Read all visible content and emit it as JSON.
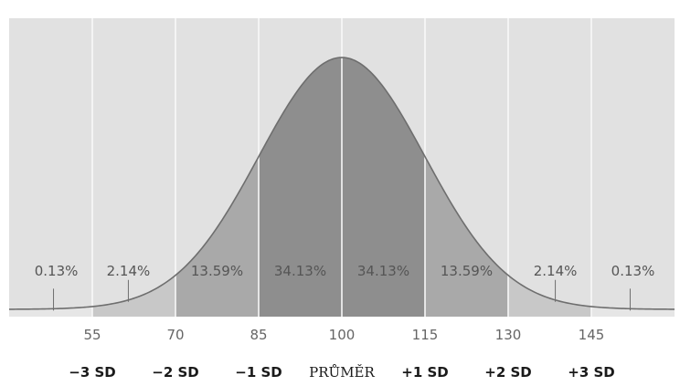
{
  "chart_data": {
    "type": "area",
    "title": "",
    "xlabel": "",
    "ylabel": "",
    "mean": 100,
    "sd": 15,
    "xlim": [
      40,
      160
    ],
    "grid": true,
    "x_ticks": [
      "55",
      "70",
      "85",
      "100",
      "115",
      "130",
      "145"
    ],
    "x_tick_values": [
      55,
      70,
      85,
      100,
      115,
      130,
      145
    ],
    "sd_labels": [
      "−3 SD",
      "−2 SD",
      "−1 SD",
      "PRŮMĚR",
      "+1 SD",
      "+2 SD",
      "+3 SD"
    ],
    "sd_label_values": [
      55,
      70,
      85,
      100,
      115,
      130,
      145
    ],
    "regions": [
      {
        "label": "0.13%",
        "from": 40,
        "to": 55,
        "value": 0.13,
        "label_x": 48.5,
        "color": "#e6e6e6"
      },
      {
        "label": "2.14%",
        "from": 55,
        "to": 70,
        "value": 2.14,
        "label_x": 61.5,
        "color": "#c8c8c8"
      },
      {
        "label": "13.59%",
        "from": 70,
        "to": 85,
        "value": 13.59,
        "label_x": 77.5,
        "color": "#a9a9a9"
      },
      {
        "label": "34.13%",
        "from": 85,
        "to": 100,
        "value": 34.13,
        "label_x": 92.5,
        "color": "#8e8e8e"
      },
      {
        "label": "34.13%",
        "from": 100,
        "to": 115,
        "value": 34.13,
        "label_x": 107.5,
        "color": "#8e8e8e"
      },
      {
        "label": "13.59%",
        "from": 115,
        "to": 130,
        "value": 13.59,
        "label_x": 122.5,
        "color": "#a9a9a9"
      },
      {
        "label": "2.14%",
        "from": 130,
        "to": 145,
        "value": 2.14,
        "label_x": 138.5,
        "color": "#c8c8c8"
      },
      {
        "label": "0.13%",
        "from": 145,
        "to": 160,
        "value": 0.13,
        "label_x": 152.5,
        "color": "#e6e6e6"
      }
    ],
    "tail_markers": [
      48,
      61.5,
      138.5,
      152
    ]
  },
  "colors": {
    "plot_background": "#e1e1e1",
    "curve": "#6e6e6e",
    "gridline": "#f8f8f8"
  }
}
